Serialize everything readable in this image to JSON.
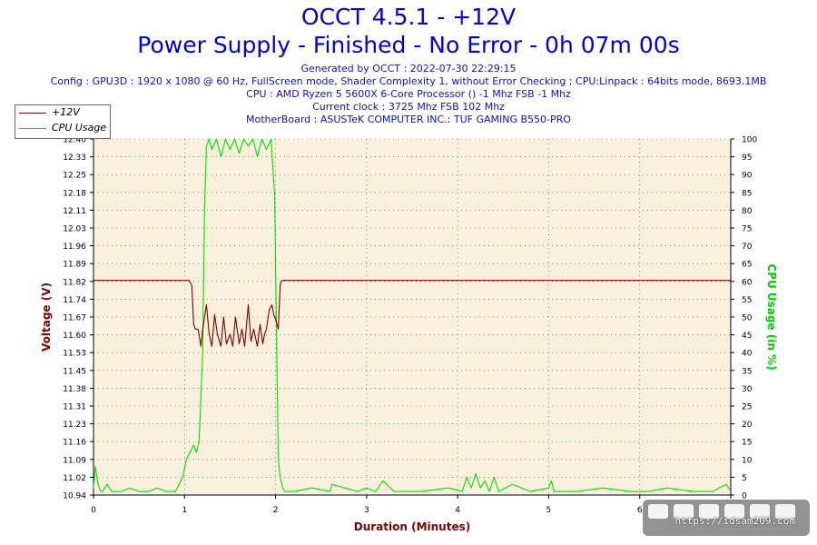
{
  "header": {
    "title": "OCCT 4.5.1 - +12V",
    "subtitle": "Power Supply - Finished - No Error - 0h 07m 00s",
    "info_lines": [
      "Generated by OCCT : 2022-07-30 22:29:15",
      "Config : GPU3D : 1920 x 1080 @ 60 Hz, FullScreen mode, Shader Complexity 1, without Error Checking ; CPU:Linpack : 64bits mode, 8693.1MB",
      "CPU : AMD Ryzen 5 5600X 6-Core Processor () -1 Mhz FSB -1 Mhz",
      "Current clock : 3725 Mhz FSB 102 Mhz",
      "MotherBoard : ASUSTeK COMPUTER INC.: TUF GAMING B550-PRO"
    ]
  },
  "watermark": {
    "text": "https://idsam209.com"
  },
  "colors": {
    "voltage": "#800000",
    "cpu": "#00e000",
    "plot_bg": "#faf0dc",
    "ylabel_left": "#800000",
    "ylabel_right": "#00cc00",
    "xlabel": "#800000"
  },
  "chart_data": {
    "type": "line",
    "xlabel": "Duration (Minutes)",
    "ylabel": "Voltage (V)",
    "y2label": "CPU Usage (in %)",
    "xlim": [
      0,
      7
    ],
    "ylim": [
      10.94,
      12.4
    ],
    "y2lim": [
      0,
      100
    ],
    "x_ticks": [
      "0",
      "1",
      "2",
      "3",
      "4",
      "5",
      "6"
    ],
    "y_ticks": [
      "10.94",
      "11.02",
      "11.09",
      "11.16",
      "11.23",
      "11.31",
      "11.38",
      "11.45",
      "11.53",
      "11.60",
      "11.67",
      "11.74",
      "11.82",
      "11.89",
      "11.96",
      "12.03",
      "12.11",
      "12.18",
      "12.25",
      "12.33",
      "12.40"
    ],
    "y2_ticks": [
      "0",
      "5",
      "10",
      "15",
      "20",
      "25",
      "30",
      "35",
      "40",
      "45",
      "50",
      "55",
      "60",
      "65",
      "70",
      "75",
      "80",
      "85",
      "90",
      "95",
      "100"
    ],
    "grid": true,
    "legend": "top-left",
    "series": [
      {
        "name": "+12V",
        "axis": "left",
        "x": [
          0,
          1.0,
          1.05,
          1.08,
          1.1,
          1.12,
          1.15,
          1.18,
          1.2,
          1.24,
          1.27,
          1.3,
          1.33,
          1.36,
          1.4,
          1.43,
          1.46,
          1.5,
          1.53,
          1.56,
          1.6,
          1.63,
          1.66,
          1.7,
          1.73,
          1.76,
          1.8,
          1.83,
          1.86,
          1.88,
          1.9,
          1.93,
          1.96,
          1.98,
          2.0,
          2.03,
          2.05,
          2.07,
          7.0
        ],
        "y": [
          11.82,
          11.82,
          11.82,
          11.8,
          11.64,
          11.62,
          11.62,
          11.55,
          11.62,
          11.72,
          11.6,
          11.55,
          11.68,
          11.6,
          11.55,
          11.67,
          11.56,
          11.6,
          11.55,
          11.67,
          11.56,
          11.62,
          11.55,
          11.72,
          11.57,
          11.62,
          11.55,
          11.64,
          11.56,
          11.6,
          11.62,
          11.7,
          11.72,
          11.68,
          11.66,
          11.62,
          11.8,
          11.82,
          11.82
        ]
      },
      {
        "name": "CPU Usage",
        "axis": "right",
        "x": [
          0,
          0.02,
          0.05,
          0.08,
          0.1,
          0.15,
          0.2,
          0.3,
          0.4,
          0.5,
          0.6,
          0.7,
          0.8,
          0.9,
          0.98,
          1.02,
          1.06,
          1.1,
          1.13,
          1.16,
          1.2,
          1.22,
          1.24,
          1.27,
          1.3,
          1.35,
          1.4,
          1.45,
          1.5,
          1.55,
          1.6,
          1.65,
          1.7,
          1.75,
          1.8,
          1.85,
          1.9,
          1.95,
          1.97,
          1.99,
          2.01,
          2.03,
          2.05,
          2.08,
          2.1,
          2.2,
          2.4,
          2.6,
          2.62,
          2.9,
          3.0,
          3.1,
          3.18,
          3.3,
          3.6,
          3.9,
          4.05,
          4.1,
          4.15,
          4.2,
          4.25,
          4.3,
          4.35,
          4.4,
          4.45,
          4.6,
          4.8,
          5.0,
          5.03,
          5.06,
          5.3,
          5.6,
          5.9,
          6.1,
          6.3,
          6.6,
          6.8,
          6.95,
          7.0
        ],
        "y": [
          2,
          8,
          3,
          1,
          1,
          3,
          1,
          1,
          2,
          1,
          1,
          2,
          1,
          1,
          5,
          10,
          12,
          14,
          12,
          15,
          40,
          80,
          98,
          100,
          97,
          100,
          95,
          100,
          97,
          100,
          96,
          100,
          98,
          100,
          95,
          100,
          97,
          100,
          92,
          84,
          45,
          10,
          5,
          2,
          1,
          1,
          2,
          1,
          3,
          1,
          2,
          1,
          4,
          1,
          1,
          2,
          1,
          5,
          2,
          6,
          2,
          4,
          1,
          5,
          1,
          3,
          1,
          2,
          4,
          1,
          1,
          2,
          1,
          1,
          2,
          1,
          1,
          3,
          1
        ]
      }
    ]
  }
}
